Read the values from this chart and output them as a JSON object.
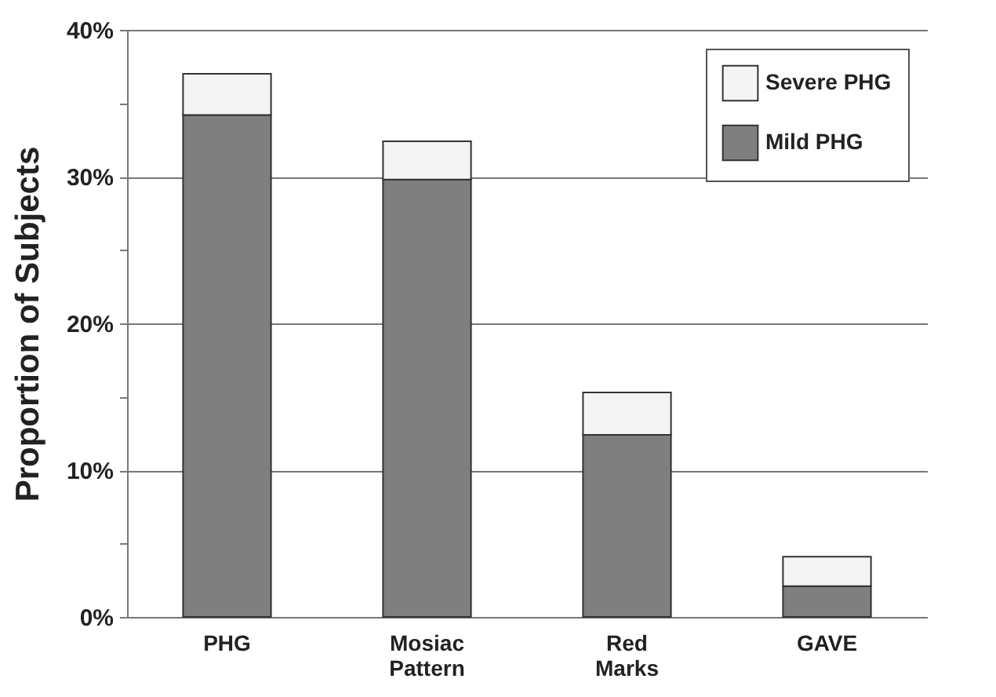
{
  "chart_data": {
    "type": "bar",
    "stacked": true,
    "ylabel": "Proportion of Subjects",
    "categories": [
      "PHG",
      "Mosiac Pattern",
      "Red Marks",
      "GAVE"
    ],
    "series": [
      {
        "name": "Mild PHG",
        "color": "#7f7f7f",
        "values": [
          34.2,
          29.8,
          12.4,
          2.1
        ]
      },
      {
        "name": "Severe PHG",
        "color": "#f4f4f4",
        "values": [
          2.8,
          2.6,
          2.9,
          2.0
        ]
      }
    ],
    "ylim": [
      0,
      40
    ],
    "yticks": [
      {
        "value": 0,
        "label": "0%"
      },
      {
        "value": 5,
        "label": null
      },
      {
        "value": 10,
        "label": "10%"
      },
      {
        "value": 15,
        "label": null
      },
      {
        "value": 20,
        "label": "20%"
      },
      {
        "value": 25,
        "label": null
      },
      {
        "value": 30,
        "label": "30%"
      },
      {
        "value": 35,
        "label": null
      },
      {
        "value": 40,
        "label": "40%"
      }
    ],
    "grid": "y",
    "legend": "top right"
  }
}
